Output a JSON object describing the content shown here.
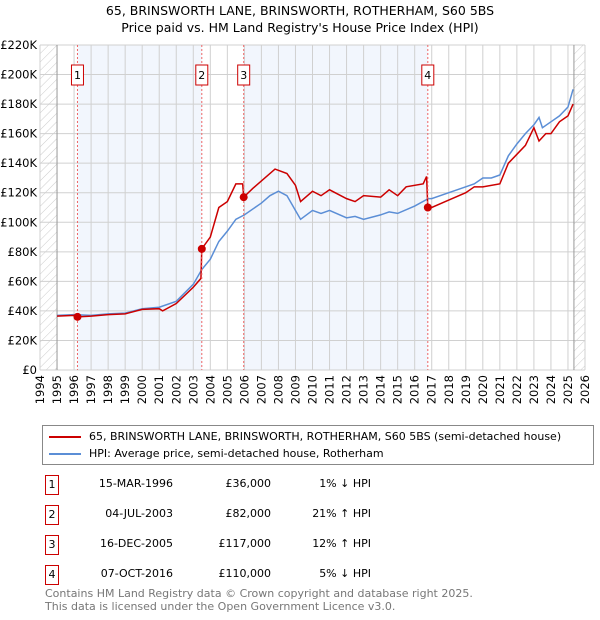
{
  "chart_data": {
    "type": "line",
    "title": "65, BRINSWORTH LANE, BRINSWORTH, ROTHERHAM, S60 5BS",
    "subtitle": "Price paid vs. HM Land Registry's House Price Index (HPI)",
    "xlim": [
      1994,
      2026
    ],
    "ylim": [
      0,
      220000
    ],
    "x_ticks": [
      "1994",
      "1995",
      "1996",
      "1997",
      "1998",
      "1999",
      "2000",
      "2001",
      "2002",
      "2003",
      "2004",
      "2005",
      "2006",
      "2007",
      "2008",
      "2009",
      "2010",
      "2011",
      "2012",
      "2013",
      "2014",
      "2015",
      "2016",
      "2017",
      "2018",
      "2019",
      "2020",
      "2021",
      "2022",
      "2023",
      "2024",
      "2025",
      "2026"
    ],
    "y_ticks": [
      "£0",
      "£20K",
      "£40K",
      "£60K",
      "£80K",
      "£100K",
      "£120K",
      "£140K",
      "£160K",
      "£180K",
      "£200K",
      "£220K"
    ],
    "grid": true,
    "series": [
      {
        "name": "65, BRINSWORTH LANE, BRINSWORTH, ROTHERHAM, S60 5BS (semi-detached house)",
        "color": "#cc0000",
        "x": [
          1995,
          1996,
          1996.2,
          1997,
          1998,
          1999,
          2000,
          2001,
          2001.2,
          2002,
          2003,
          2003.45,
          2003.5,
          2004,
          2004.5,
          2005,
          2005.5,
          2005.9,
          2005.96,
          2006.5,
          2007,
          2007.8,
          2008.5,
          2009,
          2009.3,
          2010,
          2010.5,
          2011,
          2012,
          2012.5,
          2013,
          2014,
          2014.5,
          2015,
          2015.5,
          2016.5,
          2016.7,
          2016.77,
          2017,
          2018,
          2019,
          2019.5,
          2020,
          2021,
          2021.5,
          2022,
          2022.5,
          2023,
          2023.3,
          2023.7,
          2024,
          2024.5,
          2025,
          2025.3
        ],
        "y": [
          36500,
          37000,
          36000,
          36500,
          37500,
          38000,
          41000,
          41500,
          40000,
          45000,
          56000,
          62000,
          82000,
          90000,
          110000,
          114000,
          126000,
          126000,
          117000,
          123000,
          128000,
          136000,
          133000,
          125000,
          114000,
          121000,
          118000,
          122000,
          116000,
          114000,
          118000,
          117000,
          122000,
          118000,
          124000,
          126000,
          131000,
          110000,
          110000,
          115000,
          120000,
          124000,
          124000,
          126000,
          140000,
          146000,
          152000,
          164000,
          155000,
          160000,
          160000,
          168000,
          172000,
          180000
        ]
      },
      {
        "name": "HPI: Average price, semi-detached house, Rotherham",
        "color": "#5b8ed6",
        "x": [
          1995,
          1996,
          1997,
          1998,
          1999,
          2000,
          2001,
          2002,
          2003,
          2003.5,
          2004,
          2004.5,
          2005,
          2005.5,
          2006,
          2007,
          2007.5,
          2008,
          2008.5,
          2009,
          2009.3,
          2010,
          2010.5,
          2011,
          2012,
          2012.5,
          2013,
          2014,
          2014.5,
          2015,
          2016,
          2016.8,
          2017,
          2018,
          2019,
          2019.5,
          2020,
          2020.5,
          2021,
          2021.5,
          2022,
          2022.5,
          2023,
          2023.3,
          2023.5,
          2024,
          2024.5,
          2025,
          2025.3
        ],
        "y": [
          37000,
          37500,
          37000,
          38000,
          38500,
          41500,
          42500,
          46500,
          58000,
          68000,
          75000,
          87000,
          94000,
          102000,
          105000,
          113000,
          118000,
          121000,
          118000,
          108000,
          102000,
          108000,
          106000,
          108000,
          103000,
          104000,
          102000,
          105000,
          107000,
          106000,
          111000,
          116000,
          116000,
          120000,
          124000,
          126000,
          130000,
          130000,
          132000,
          145000,
          153000,
          160000,
          166000,
          171000,
          164000,
          168000,
          172000,
          178000,
          190000
        ]
      }
    ],
    "sales": [
      {
        "n": "1",
        "x": 1996.2,
        "y": 36000,
        "date": "15-MAR-1996",
        "price": "£36,000",
        "hpi": "1% ↓ HPI"
      },
      {
        "n": "2",
        "x": 2003.5,
        "y": 82000,
        "date": "04-JUL-2003",
        "price": "£82,000",
        "hpi": "21% ↑ HPI"
      },
      {
        "n": "3",
        "x": 2005.96,
        "y": 117000,
        "date": "16-DEC-2005",
        "price": "£117,000",
        "hpi": "12% ↑ HPI"
      },
      {
        "n": "4",
        "x": 2016.77,
        "y": 110000,
        "date": "07-OCT-2016",
        "price": "£110,000",
        "hpi": "5% ↓ HPI"
      }
    ],
    "data_end": 2025.35
  },
  "footer": {
    "line1": "Contains HM Land Registry data © Crown copyright and database right 2025.",
    "line2": "This data is licensed under the Open Government Licence v3.0."
  }
}
